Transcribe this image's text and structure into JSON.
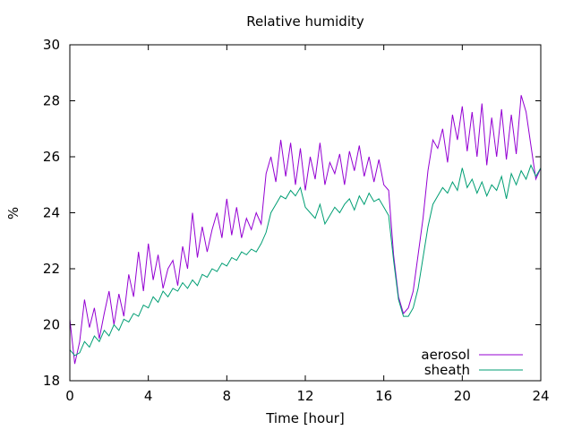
{
  "chart_data": {
    "type": "line",
    "title": "Relative humidity",
    "xlabel": "Time [hour]",
    "ylabel": "%",
    "xlim": [
      0,
      24
    ],
    "ylim": [
      18,
      30
    ],
    "xticks": [
      0,
      4,
      8,
      12,
      16,
      20,
      24
    ],
    "yticks": [
      18,
      20,
      22,
      24,
      26,
      28,
      30
    ],
    "grid": false,
    "legend_position": "bottom-right",
    "series": [
      {
        "name": "aerosol",
        "color": "#9400d3",
        "x": [
          0,
          0.25,
          0.5,
          0.75,
          1,
          1.25,
          1.5,
          1.75,
          2,
          2.25,
          2.5,
          2.75,
          3,
          3.25,
          3.5,
          3.75,
          4,
          4.25,
          4.5,
          4.75,
          5,
          5.25,
          5.5,
          5.75,
          6,
          6.25,
          6.5,
          6.75,
          7,
          7.25,
          7.5,
          7.75,
          8,
          8.25,
          8.5,
          8.75,
          9,
          9.25,
          9.5,
          9.75,
          10,
          10.25,
          10.5,
          10.75,
          11,
          11.25,
          11.5,
          11.75,
          12,
          12.25,
          12.5,
          12.75,
          13,
          13.25,
          13.5,
          13.75,
          14,
          14.25,
          14.5,
          14.75,
          15,
          15.25,
          15.5,
          15.75,
          16,
          16.25,
          16.5,
          16.75,
          17,
          17.25,
          17.5,
          17.75,
          18,
          18.25,
          18.5,
          18.75,
          19,
          19.25,
          19.5,
          19.75,
          20,
          20.25,
          20.5,
          20.75,
          21,
          21.25,
          21.5,
          21.75,
          22,
          22.25,
          22.5,
          22.75,
          23,
          23.25,
          23.5,
          23.75,
          24
        ],
        "y": [
          20.2,
          18.6,
          19.4,
          20.9,
          19.9,
          20.6,
          19.5,
          20.4,
          21.2,
          20.0,
          21.1,
          20.3,
          21.8,
          21.0,
          22.6,
          21.2,
          22.9,
          21.6,
          22.5,
          21.3,
          22.0,
          22.3,
          21.4,
          22.8,
          22.0,
          24.0,
          22.4,
          23.5,
          22.6,
          23.4,
          24.0,
          23.1,
          24.5,
          23.2,
          24.2,
          23.1,
          23.8,
          23.4,
          24.0,
          23.6,
          25.4,
          26.0,
          25.1,
          26.6,
          25.3,
          26.5,
          25.0,
          26.3,
          24.8,
          26.0,
          25.2,
          26.5,
          25.0,
          25.8,
          25.4,
          26.1,
          25.0,
          26.2,
          25.5,
          26.4,
          25.3,
          26.0,
          25.1,
          25.9,
          25.0,
          24.8,
          22.5,
          21.0,
          20.4,
          20.6,
          21.2,
          22.5,
          23.8,
          25.5,
          26.6,
          26.3,
          27.0,
          25.8,
          27.5,
          26.6,
          27.8,
          26.2,
          27.6,
          26.0,
          27.9,
          25.7,
          27.4,
          26.0,
          27.7,
          25.9,
          27.5,
          26.1,
          28.2,
          27.6,
          26.4,
          25.2,
          25.6
        ]
      },
      {
        "name": "sheath",
        "color": "#009e73",
        "x": [
          0,
          0.25,
          0.5,
          0.75,
          1,
          1.25,
          1.5,
          1.75,
          2,
          2.25,
          2.5,
          2.75,
          3,
          3.25,
          3.5,
          3.75,
          4,
          4.25,
          4.5,
          4.75,
          5,
          5.25,
          5.5,
          5.75,
          6,
          6.25,
          6.5,
          6.75,
          7,
          7.25,
          7.5,
          7.75,
          8,
          8.25,
          8.5,
          8.75,
          9,
          9.25,
          9.5,
          9.75,
          10,
          10.25,
          10.5,
          10.75,
          11,
          11.25,
          11.5,
          11.75,
          12,
          12.25,
          12.5,
          12.75,
          13,
          13.25,
          13.5,
          13.75,
          14,
          14.25,
          14.5,
          14.75,
          15,
          15.25,
          15.5,
          15.75,
          16,
          16.25,
          16.5,
          16.75,
          17,
          17.25,
          17.5,
          17.75,
          18,
          18.25,
          18.5,
          18.75,
          19,
          19.25,
          19.5,
          19.75,
          20,
          20.25,
          20.5,
          20.75,
          21,
          21.25,
          21.5,
          21.75,
          22,
          22.25,
          22.5,
          22.75,
          23,
          23.25,
          23.5,
          23.75,
          24
        ],
        "y": [
          19.1,
          18.9,
          19.0,
          19.4,
          19.2,
          19.6,
          19.4,
          19.8,
          19.6,
          20.0,
          19.8,
          20.2,
          20.1,
          20.4,
          20.3,
          20.7,
          20.6,
          21.0,
          20.8,
          21.2,
          21.0,
          21.3,
          21.2,
          21.5,
          21.3,
          21.6,
          21.4,
          21.8,
          21.7,
          22.0,
          21.9,
          22.2,
          22.1,
          22.4,
          22.3,
          22.6,
          22.5,
          22.7,
          22.6,
          22.9,
          23.3,
          24.0,
          24.3,
          24.6,
          24.5,
          24.8,
          24.6,
          24.9,
          24.2,
          24.0,
          23.8,
          24.3,
          23.6,
          23.9,
          24.2,
          24.0,
          24.3,
          24.5,
          24.1,
          24.6,
          24.3,
          24.7,
          24.4,
          24.5,
          24.2,
          23.9,
          22.3,
          20.9,
          20.3,
          20.3,
          20.6,
          21.3,
          22.4,
          23.5,
          24.3,
          24.6,
          24.9,
          24.7,
          25.1,
          24.8,
          25.6,
          24.9,
          25.2,
          24.7,
          25.1,
          24.6,
          25.0,
          24.8,
          25.3,
          24.5,
          25.4,
          25.0,
          25.5,
          25.2,
          25.7,
          25.3,
          25.6
        ]
      }
    ]
  }
}
